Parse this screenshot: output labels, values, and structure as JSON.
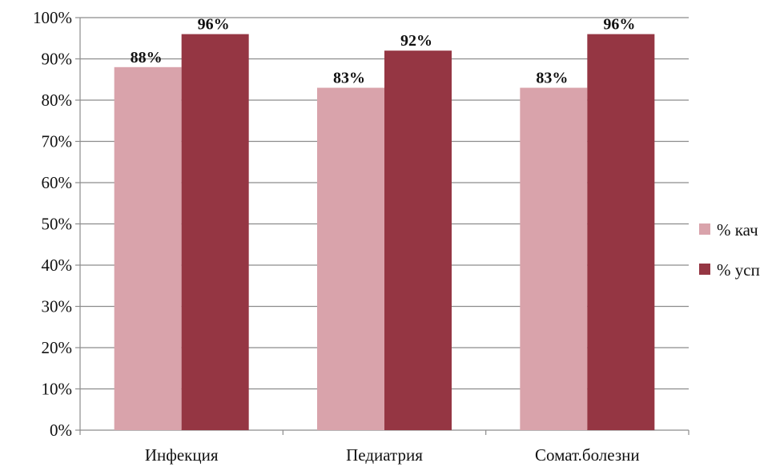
{
  "chart_data": {
    "type": "bar",
    "categories": [
      "Инфекция",
      "Педиатрия",
      "Сомат.болезни"
    ],
    "series": [
      {
        "name": "% кач",
        "values": [
          88,
          83,
          83
        ],
        "labels": [
          "88%",
          "83%",
          "83%"
        ],
        "color": "#d9a3ab"
      },
      {
        "name": "% усп",
        "values": [
          96,
          92,
          96
        ],
        "labels": [
          "96%",
          "92%",
          "96%"
        ],
        "color": "#953643"
      }
    ],
    "yticks": [
      "0%",
      "10%",
      "20%",
      "30%",
      "40%",
      "50%",
      "60%",
      "70%",
      "80%",
      "90%",
      "100%"
    ],
    "ylim": [
      0,
      100
    ],
    "grid": true,
    "legend": "right",
    "title": "",
    "xlabel": "",
    "ylabel": ""
  }
}
